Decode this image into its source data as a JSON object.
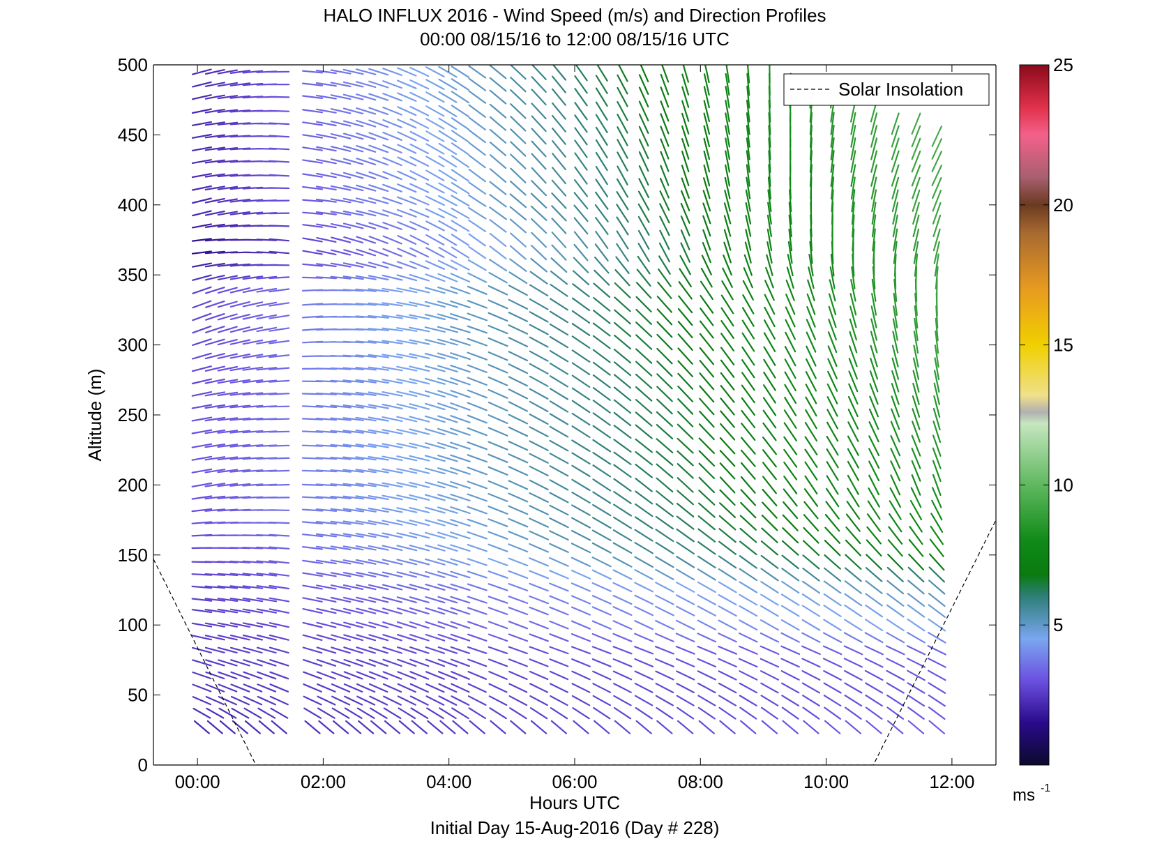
{
  "chart_data": {
    "type": "wind_barb_profile",
    "title": "HALO INFLUX 2016 - Wind Speed (m/s) and Direction Profiles",
    "subtitle": "00:00 08/15/16 to 12:00 08/15/16  UTC",
    "xlabel": "Hours UTC",
    "ylabel": "Altitude (m)",
    "footer": "Initial Day 15-Aug-2016 (Day # 228)",
    "xlim": [
      -0.7,
      12.7
    ],
    "ylim": [
      0,
      500
    ],
    "x_ticks": [
      0,
      2,
      4,
      6,
      8,
      10,
      12
    ],
    "x_tick_labels": [
      "00:00",
      "02:00",
      "04:00",
      "06:00",
      "08:00",
      "10:00",
      "12:00"
    ],
    "y_ticks": [
      0,
      50,
      100,
      150,
      200,
      250,
      300,
      350,
      400,
      450,
      500
    ],
    "y_tick_labels": [
      "0",
      "50",
      "100",
      "150",
      "200",
      "250",
      "300",
      "350",
      "400",
      "450",
      "500"
    ],
    "legend": {
      "position": "top-right",
      "entries": [
        {
          "label": "Solar Insolation",
          "style": "dashed",
          "color": "#000000"
        }
      ]
    },
    "solar_insolation": [
      {
        "x": -0.7,
        "y": 147
      },
      {
        "x": 0.93,
        "y": 0
      },
      {
        "x": 10.75,
        "y": 0
      },
      {
        "x": 12.7,
        "y": 175
      }
    ],
    "colorbar": {
      "min": 0,
      "max": 25,
      "ticks": [
        5,
        10,
        15,
        20,
        25
      ],
      "tick_labels": [
        "5",
        "10",
        "15",
        "20",
        "25"
      ],
      "unit_label": "ms",
      "unit_exponent": "-1",
      "stops": [
        {
          "v": 0,
          "c": "#0b0a2e"
        },
        {
          "v": 1.5,
          "c": "#2a0a8a"
        },
        {
          "v": 3,
          "c": "#6b4fe0"
        },
        {
          "v": 4.5,
          "c": "#7aa6f0"
        },
        {
          "v": 6,
          "c": "#2f7f7a"
        },
        {
          "v": 6.8,
          "c": "#0a7a10"
        },
        {
          "v": 8,
          "c": "#108a18"
        },
        {
          "v": 10,
          "c": "#5fb85f"
        },
        {
          "v": 12.2,
          "c": "#c6e6c0"
        },
        {
          "v": 12.6,
          "c": "#b0b0b0"
        },
        {
          "v": 13.2,
          "c": "#f0e08a"
        },
        {
          "v": 15,
          "c": "#f0d000"
        },
        {
          "v": 17,
          "c": "#e89a20"
        },
        {
          "v": 19,
          "c": "#a86a30"
        },
        {
          "v": 20,
          "c": "#6b3a20"
        },
        {
          "v": 21,
          "c": "#a86070"
        },
        {
          "v": 22.5,
          "c": "#f4608a"
        },
        {
          "v": 23.5,
          "c": "#e0304a"
        },
        {
          "v": 25,
          "c": "#8a0a1a"
        }
      ]
    },
    "times": [
      0.07,
      0.28,
      0.48,
      0.68,
      0.88,
      1.1,
      1.3,
      1.83,
      2.05,
      2.28,
      2.48,
      2.68,
      2.88,
      3.1,
      3.33,
      3.53,
      3.78,
      3.98,
      4.18,
      4.45,
      4.78,
      5.1,
      5.43,
      5.75,
      6.1,
      6.43,
      6.76,
      7.1,
      7.43,
      7.76,
      8.1,
      8.43,
      8.76,
      9.1,
      9.43,
      9.76,
      10.1,
      10.43,
      10.76,
      11.1,
      11.43,
      11.76
    ],
    "altitudes": [
      27,
      37,
      46,
      55,
      64,
      73,
      82,
      91,
      100,
      110,
      118,
      127,
      136,
      145,
      155,
      164,
      173,
      182,
      191,
      200,
      210,
      219,
      228,
      238,
      247,
      256,
      265,
      274,
      283,
      292,
      302,
      311,
      320,
      329,
      339,
      348,
      357,
      366,
      375,
      385,
      394,
      403,
      412,
      421,
      431,
      440,
      449,
      458,
      467,
      477,
      486,
      495
    ],
    "gates": [
      {
        "z": 30,
        "c0": 0.07,
        "c1": 11.76,
        "d0": 130,
        "d1": 130,
        "s0": 2.2,
        "s1": 3.2
      },
      {
        "z": 40,
        "c0": 0.07,
        "c1": 11.76,
        "d0": 115,
        "d1": 125,
        "s0": 2.4,
        "s1": 3.0
      },
      {
        "z": 60,
        "c0": 0.07,
        "c1": 11.76,
        "d0": 110,
        "d1": 120,
        "s0": 2.5,
        "s1": 3.0
      },
      {
        "z": 80,
        "c0": 0.07,
        "c1": 11.76,
        "d0": 105,
        "d1": 115,
        "s0": 2.6,
        "s1": 3.2
      },
      {
        "z": 100,
        "c0": 0.07,
        "c1": 11.76,
        "d0": 100,
        "d1": 125,
        "s0": 2.6,
        "s1": 4.6
      },
      {
        "z": 125,
        "c0": 0.07,
        "c1": 11.76,
        "d0": 95,
        "d1": 130,
        "s0": 2.7,
        "s1": 5.2
      },
      {
        "z": 150,
        "c0": 0.07,
        "c1": 11.76,
        "d0": 90,
        "d1": 140,
        "s0": 2.8,
        "s1": 7.5
      },
      {
        "z": 175,
        "c0": 0.07,
        "c1": 11.76,
        "d0": 85,
        "d1": 150,
        "s0": 3.0,
        "s1": 8.0
      },
      {
        "z": 200,
        "c0": 0.07,
        "c1": 11.76,
        "d0": 80,
        "d1": 160,
        "s0": 3.0,
        "s1": 8.2
      },
      {
        "z": 225,
        "c0": 0.07,
        "c1": 11.76,
        "d0": 80,
        "d1": 160,
        "s0": 3.0,
        "s1": 8.5
      },
      {
        "z": 255,
        "c0": 0.07,
        "c1": 11.76,
        "d0": 80,
        "d1": 165,
        "s0": 2.9,
        "s1": 8.5
      },
      {
        "z": 285,
        "c0": 0.07,
        "c1": 11.76,
        "d0": 75,
        "d1": 170,
        "s0": 2.8,
        "s1": 8.8
      },
      {
        "z": 312,
        "c0": 0.07,
        "c1": 11.76,
        "d0": 70,
        "d1": 175,
        "s0": 2.8,
        "s1": 9.0
      },
      {
        "z": 337,
        "c0": 0.07,
        "c1": 11.76,
        "d0": 70,
        "d1": 180,
        "s0": 2.8,
        "s1": 9.0
      },
      {
        "z": 370,
        "c0": -0.1,
        "c1": 11.76,
        "d0": 85,
        "d1": 195,
        "s0": 1.5,
        "s1": 9.0
      },
      {
        "z": 397,
        "c0": 0.07,
        "c1": 11.76,
        "d0": 75,
        "d1": 200,
        "s0": 2.2,
        "s1": 9.2
      },
      {
        "z": 422,
        "c0": 0.07,
        "c1": 11.76,
        "d0": 80,
        "d1": 205,
        "s0": 2.2,
        "s1": 9.2
      },
      {
        "z": 455,
        "c0": 0.07,
        "c1": 11.76,
        "d0": 80,
        "d1": 205,
        "s0": 2.2,
        "s1": 9.5
      },
      {
        "z": 495,
        "c0": 0.07,
        "c1": 9.1,
        "d0": 75,
        "d1": 210,
        "s0": 2.2,
        "s1": 10.0
      }
    ]
  }
}
